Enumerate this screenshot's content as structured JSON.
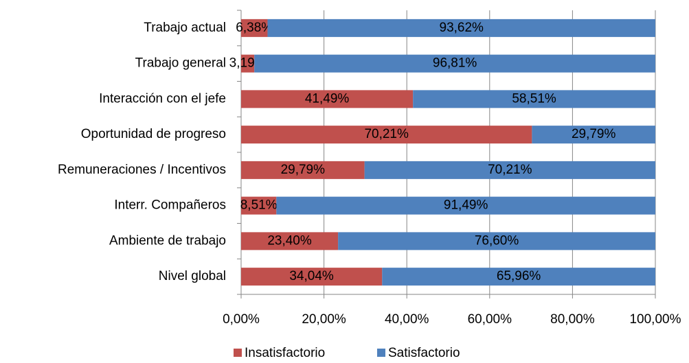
{
  "chart_data": {
    "type": "stacked_barh",
    "categories": [
      "Trabajo actual",
      "Trabajo general",
      "Interacción con el jefe",
      "Oportunidad de progreso",
      "Remuneraciones / Incentivos",
      "Interr. Compañeros",
      "Ambiente de trabajo",
      "Nivel global"
    ],
    "series": [
      {
        "name": "Insatisfactorio",
        "color": "#c0504d",
        "values": [
          6.38,
          3.19,
          41.49,
          70.21,
          29.79,
          8.51,
          23.4,
          34.04
        ],
        "value_labels": [
          "6,38%",
          "3,19%",
          "41,49%",
          "70,21%",
          "29,79%",
          "8,51%",
          "23,40%",
          "34,04%"
        ]
      },
      {
        "name": "Satisfactorio",
        "color": "#4f81bd",
        "values": [
          93.62,
          96.81,
          58.51,
          29.79,
          70.21,
          91.49,
          76.6,
          65.96
        ],
        "value_labels": [
          "93,62%",
          "96,81%",
          "58,51%",
          "29,79%",
          "70,21%",
          "91,49%",
          "76,60%",
          "65,96%"
        ]
      }
    ],
    "xlim": [
      0,
      100
    ],
    "xticks": [
      {
        "value": 0,
        "label": "0,00%"
      },
      {
        "value": 20,
        "label": "20,00%"
      },
      {
        "value": 40,
        "label": "40,00%"
      },
      {
        "value": 60,
        "label": "60,00%"
      },
      {
        "value": 80,
        "label": "80,00%"
      },
      {
        "value": 100,
        "label": "100,00%"
      }
    ],
    "grid": true,
    "legend": "bottom"
  }
}
